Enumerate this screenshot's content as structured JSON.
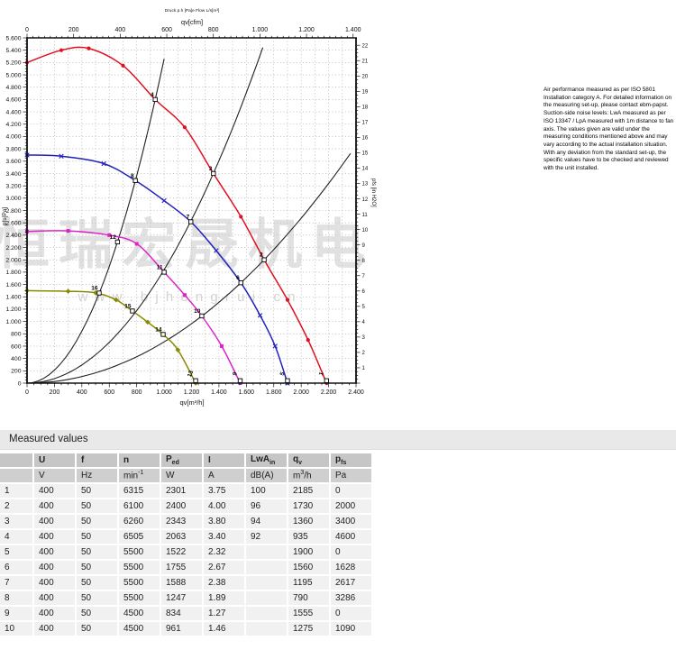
{
  "watermark": {
    "cn": "恒瑞宏晟机电",
    "url": "w w w . b j h e n g r u i . c n"
  },
  "note": "Air performance measured as per ISO 5801 Installation category A. For detailed information on the measuring set-up, please contact ebm-papst. Suction-side noise levels: LwA measured as per ISO 13347 / LpA measured with 1m distance to fan axis. The values given are valid under the measuring conditions mentioned above and may vary according to the actual installation situation. With any deviation from the standard set-up, the specific values have to be checked and reviewed with the unit installed.",
  "table": {
    "title": "Measured values",
    "columns": [
      [
        ""
      ],
      [
        "U"
      ],
      [
        "f"
      ],
      [
        "n"
      ],
      [
        "P",
        {
          "sub": "ed"
        }
      ],
      [
        "I"
      ],
      [
        "LwA",
        {
          "sub": "in"
        }
      ],
      [
        "q",
        {
          "sub": "v"
        }
      ],
      [
        "p",
        {
          "sub": "fs"
        }
      ]
    ],
    "units": [
      [
        ""
      ],
      [
        "V"
      ],
      [
        "Hz"
      ],
      [
        "min",
        {
          "sup": "-1"
        }
      ],
      [
        "W"
      ],
      [
        "A"
      ],
      [
        "dB(A)"
      ],
      [
        "m",
        {
          "sup": "3"
        },
        "/h"
      ],
      [
        "Pa"
      ]
    ],
    "rows": [
      [
        "1",
        "400",
        "50",
        "6315",
        "2301",
        "3.75",
        "100",
        "2185",
        "0"
      ],
      [
        "2",
        "400",
        "50",
        "6100",
        "2400",
        "4.00",
        "96",
        "1730",
        "2000"
      ],
      [
        "3",
        "400",
        "50",
        "6260",
        "2343",
        "3.80",
        "94",
        "1360",
        "3400"
      ],
      [
        "4",
        "400",
        "50",
        "6505",
        "2063",
        "3.40",
        "92",
        "935",
        "4600"
      ],
      [
        "5",
        "400",
        "50",
        "5500",
        "1522",
        "2.32",
        "",
        "1900",
        "0"
      ],
      [
        "6",
        "400",
        "50",
        "5500",
        "1755",
        "2.67",
        "",
        "1560",
        "1628"
      ],
      [
        "7",
        "400",
        "50",
        "5500",
        "1588",
        "2.38",
        "",
        "1195",
        "2617"
      ],
      [
        "8",
        "400",
        "50",
        "5500",
        "1247",
        "1.89",
        "",
        "790",
        "3286"
      ],
      [
        "9",
        "400",
        "50",
        "4500",
        "834",
        "1.27",
        "",
        "1555",
        "0"
      ],
      [
        "10",
        "400",
        "50",
        "4500",
        "961",
        "1.46",
        "",
        "1275",
        "1090"
      ]
    ]
  },
  "chart_data": {
    "type": "line",
    "small_print": "Druck p.h [Pa]e Flow L/s[m³]",
    "x_top": {
      "label": "qv[cfm]",
      "min": 0,
      "max": 1400,
      "tick": 200,
      "minor": 25
    },
    "x_bottom": {
      "label": "qv[m³/h]",
      "min": 0,
      "max": 2400,
      "tick": 200,
      "minor": 50
    },
    "y_left": {
      "label": "pfs[Pa]",
      "min": 0,
      "max": 5600,
      "tick": 200,
      "minor": 50
    },
    "y_right": {
      "label": "pfs [in H2O]",
      "min": 0,
      "max": 22,
      "tick": 1,
      "minor": 0.25
    },
    "grid": {
      "on": true,
      "v_step": 100,
      "h_step": 200
    },
    "series": [
      {
        "name": "fan curve, points 1-4",
        "color": "#e01020",
        "marker": "dot",
        "points": [
          [
            0,
            5200
          ],
          [
            250,
            5400
          ],
          [
            450,
            5430
          ],
          [
            700,
            5150
          ],
          [
            935,
            4600
          ],
          [
            1150,
            4150
          ],
          [
            1360,
            3400
          ],
          [
            1560,
            2700
          ],
          [
            1730,
            2000
          ],
          [
            1900,
            1350
          ],
          [
            2050,
            700
          ],
          [
            2185,
            0
          ]
        ]
      },
      {
        "name": "fan curve, points 5-8",
        "color": "#2020bb",
        "marker": "x",
        "points": [
          [
            0,
            3700
          ],
          [
            250,
            3680
          ],
          [
            560,
            3560
          ],
          [
            790,
            3286
          ],
          [
            1000,
            2960
          ],
          [
            1195,
            2617
          ],
          [
            1380,
            2150
          ],
          [
            1560,
            1628
          ],
          [
            1700,
            1100
          ],
          [
            1810,
            600
          ],
          [
            1900,
            0
          ]
        ]
      },
      {
        "name": "fan curve, points 9-12",
        "color": "#dd22cc",
        "marker": "square",
        "points": [
          [
            0,
            2460
          ],
          [
            300,
            2470
          ],
          [
            600,
            2400
          ],
          [
            800,
            2260
          ],
          [
            1000,
            1800
          ],
          [
            1150,
            1430
          ],
          [
            1275,
            1090
          ],
          [
            1420,
            600
          ],
          [
            1555,
            0
          ]
        ]
      },
      {
        "name": "fan curve, points 13-16",
        "color": "#8a8a00",
        "marker": "diamond",
        "points": [
          [
            0,
            1500
          ],
          [
            300,
            1490
          ],
          [
            500,
            1465
          ],
          [
            650,
            1350
          ],
          [
            769,
            1170
          ],
          [
            880,
            990
          ],
          [
            993,
            790
          ],
          [
            1100,
            540
          ],
          [
            1230,
            0
          ]
        ]
      }
    ],
    "system_curves": [
      {
        "name": "system curve through points 4,8,12,16",
        "c": 0.00526
      },
      {
        "name": "system curve through points 3,7,11,15",
        "c": 0.00184
      },
      {
        "name": "system curve through points 2,6,10,14",
        "c": 0.000669
      }
    ],
    "operating_points": [
      {
        "n": "1",
        "q": 2185,
        "p": 40,
        "rot": true
      },
      {
        "n": "2",
        "q": 1730,
        "p": 2000
      },
      {
        "n": "3",
        "q": 1360,
        "p": 3400
      },
      {
        "n": "4",
        "q": 935,
        "p": 4600
      },
      {
        "n": "5",
        "q": 1900,
        "p": 40,
        "rot": true
      },
      {
        "n": "6",
        "q": 1560,
        "p": 1628
      },
      {
        "n": "7",
        "q": 1195,
        "p": 2617
      },
      {
        "n": "8",
        "q": 790,
        "p": 3286
      },
      {
        "n": "9",
        "q": 1555,
        "p": 40,
        "rot": true
      },
      {
        "n": "10",
        "q": 1275,
        "p": 1090
      },
      {
        "n": "11",
        "q": 1000,
        "p": 1800
      },
      {
        "n": "12",
        "q": 660,
        "p": 2290
      },
      {
        "n": "13",
        "q": 1230,
        "p": 40,
        "rot": true
      },
      {
        "n": "14",
        "q": 993,
        "p": 790
      },
      {
        "n": "15",
        "q": 769,
        "p": 1170
      },
      {
        "n": "16",
        "q": 526,
        "p": 1462
      }
    ]
  }
}
